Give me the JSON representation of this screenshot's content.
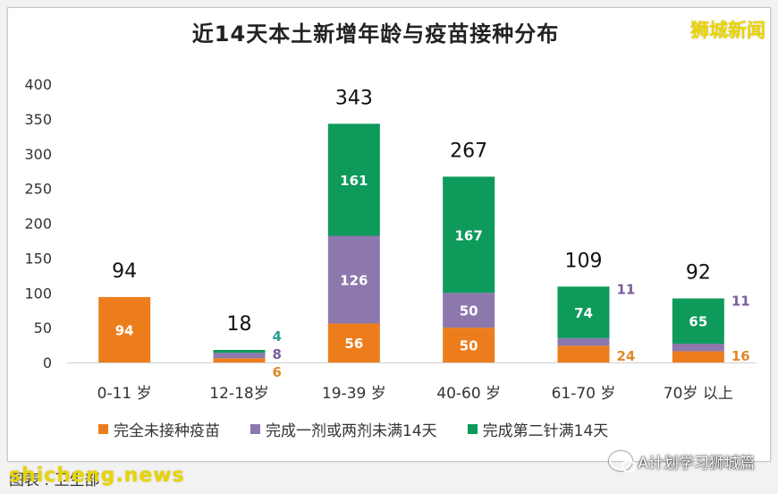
{
  "brand_top_right": "狮城新闻",
  "legend": {
    "unvaccinated": "完全未接种疫苗",
    "partial": "完成一剂或两剂未满14天",
    "full": "完成第二针满14天"
  },
  "source": "图表 : 卫生部",
  "watermark": "shicheng.news",
  "wechat": {
    "label": "A计划学习狮城篇",
    "icon": "wechat-icon"
  },
  "colors": {
    "unvaccinated": "#ed7d1c",
    "partial": "#8c78ad",
    "full": "#0e9a5b",
    "label_unvaccinated": "#e08a2c",
    "label_partial": "#7a5c9e",
    "label_full": "#2a9d8f"
  },
  "chart_data": {
    "type": "bar",
    "stacked": true,
    "title": "近14天本土新增年龄与疫苗接种分布",
    "categories": [
      "0-11 岁",
      "12-18岁",
      "19-39 岁",
      "40-60 岁",
      "61-70 岁",
      "70岁 以上"
    ],
    "series": [
      {
        "name": "完全未接种疫苗",
        "values": [
          94,
          6,
          56,
          50,
          24,
          16
        ]
      },
      {
        "name": "完成一剂或两剂未满14天",
        "values": [
          0,
          8,
          126,
          50,
          11,
          11
        ]
      },
      {
        "name": "完成第二针满14天",
        "values": [
          0,
          4,
          161,
          167,
          74,
          65
        ]
      }
    ],
    "totals": [
      94,
      18,
      343,
      267,
      109,
      92
    ],
    "ylim": [
      0,
      400
    ],
    "yticks": [
      0,
      50,
      100,
      150,
      200,
      250,
      300,
      350,
      400
    ],
    "grid": false,
    "legend_position": "bottom",
    "xlabel": "",
    "ylabel": ""
  }
}
